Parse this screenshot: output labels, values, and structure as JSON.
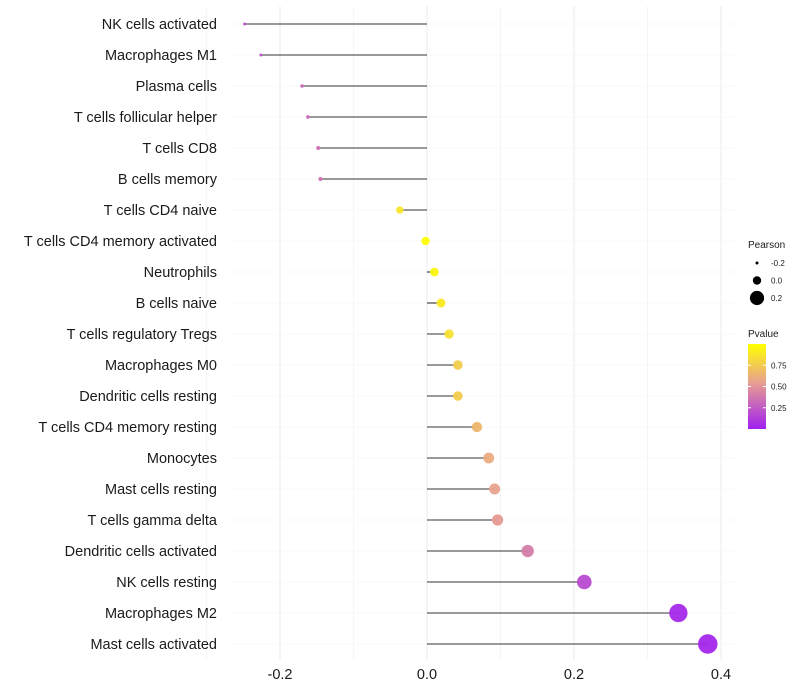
{
  "chart_data": {
    "type": "lollipop",
    "title": "",
    "xlabel": "",
    "ylabel": "",
    "xlim": [
      -0.3,
      0.4
    ],
    "x_ticks": [
      -0.2,
      0.0,
      0.2,
      0.4
    ],
    "x_tick_labels": [
      "-0.2",
      "0.0",
      "0.2",
      "0.4"
    ],
    "grid": true,
    "categories": [
      "NK cells activated",
      "Macrophages M1",
      "Plasma cells",
      "T cells follicular helper",
      "T cells CD8",
      "B cells memory",
      "T cells CD4 naive",
      "T cells CD4 memory activated",
      "Neutrophils",
      "B cells naive",
      "T cells regulatory  Tregs ",
      "Macrophages M0",
      "Dendritic cells resting",
      "T cells CD4 memory resting",
      "Monocytes",
      "Mast cells resting",
      "T cells gamma delta",
      "Dendritic cells activated",
      "NK cells resting",
      "Macrophages M2",
      "Mast cells activated"
    ],
    "pearson": [
      -0.248,
      -0.226,
      -0.17,
      -0.162,
      -0.148,
      -0.145,
      -0.037,
      -0.002,
      0.01,
      0.019,
      0.03,
      0.042,
      0.042,
      0.068,
      0.084,
      0.092,
      0.096,
      0.137,
      0.214,
      0.342,
      0.382
    ],
    "pvalue": [
      0.2,
      0.22,
      0.3,
      0.32,
      0.35,
      0.36,
      0.88,
      0.99,
      0.95,
      0.9,
      0.85,
      0.76,
      0.76,
      0.66,
      0.6,
      0.56,
      0.53,
      0.4,
      0.18,
      0.04,
      0.03
    ],
    "legend_size": {
      "title": "Pearson",
      "values": [
        -0.2,
        0.0,
        0.2
      ],
      "labels": [
        "-0.2",
        "0.0",
        "0.2"
      ]
    },
    "legend_color": {
      "title": "Pvalue",
      "range": [
        0.0,
        1.0
      ],
      "ticks": [
        0.25,
        0.5,
        0.75
      ],
      "tick_labels": [
        "0.25",
        "0.50",
        "0.75"
      ],
      "low_color": "#a020f0",
      "mid_color": "#e8a090",
      "high_color": "#ffff00"
    },
    "placement": "legend right"
  }
}
